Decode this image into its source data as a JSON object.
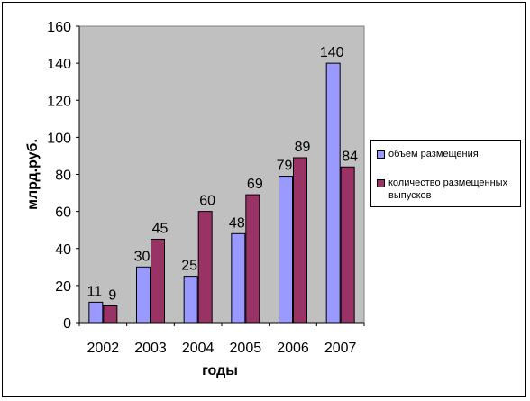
{
  "chart_data": {
    "type": "bar",
    "categories": [
      "2002",
      "2003",
      "2004",
      "2005",
      "2006",
      "2007"
    ],
    "series": [
      {
        "name": "объем размещения",
        "values": [
          11,
          30,
          25,
          48,
          79,
          140
        ],
        "color": "#9999ff"
      },
      {
        "name": "количество размещенных выпусков",
        "values": [
          9,
          45,
          60,
          69,
          89,
          84
        ],
        "color": "#993366"
      }
    ],
    "title": "",
    "xlabel": "годы",
    "ylabel": "млрд.руб.",
    "ylim": [
      0,
      160
    ],
    "yticks": [
      "0",
      "20",
      "40",
      "60",
      "80",
      "100",
      "120",
      "140",
      "160"
    ],
    "grid": false,
    "legend_position": "right",
    "plot_background": "#c0c0c0"
  }
}
